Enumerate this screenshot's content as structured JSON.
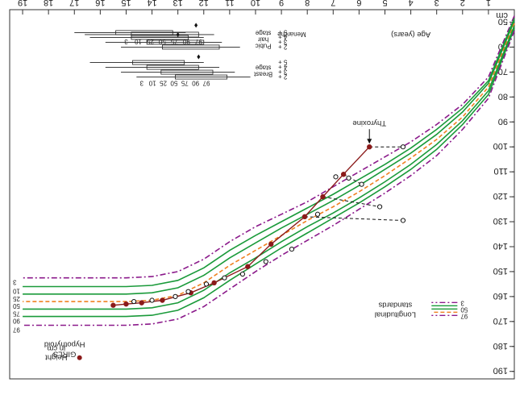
{
  "chart_data": {
    "type": "line",
    "orientation": "rotated-180",
    "title_lines": [
      "GIRLS",
      "Hypothyroid"
    ],
    "unit_label": "cm",
    "legend_marker_label_lines": [
      "Height",
      "in cm"
    ],
    "legend_standards_label_lines": [
      "Longitudinal",
      "standards"
    ],
    "legend_percentile_labels": [
      "97",
      "50",
      "3"
    ],
    "xlabel": "Age (years)",
    "x_ticks": [
      1,
      2,
      3,
      4,
      5,
      6,
      7,
      8,
      9,
      10,
      11,
      12,
      13,
      14,
      15,
      16,
      17,
      18,
      19
    ],
    "y_ticks": [
      50,
      60,
      70,
      80,
      90,
      100,
      110,
      120,
      130,
      140,
      150,
      160,
      170,
      180,
      190
    ],
    "xlim": [
      0,
      19.5
    ],
    "ylim": [
      45,
      193
    ],
    "colors": {
      "p97": "#8b1a8b",
      "p90": "#1a9a3a",
      "p75": "#1a9a3a",
      "p50": "#f08020",
      "p25": "#1a9a3a",
      "p10": "#1a9a3a",
      "p3": "#8b1a8b",
      "patient": "#8b1a1a",
      "marker": "#8b1a1a",
      "text": "#222222"
    },
    "percentile_labels": [
      "3",
      "10",
      "25",
      "50",
      "75",
      "90",
      "97"
    ],
    "series": [
      {
        "name": "3",
        "key": "p3",
        "x": [
          0,
          1,
          2,
          3,
          4,
          5,
          6,
          7,
          8,
          9,
          10,
          11,
          12,
          13,
          14,
          15,
          16,
          17,
          18,
          19
        ],
        "y": [
          47.5,
          72,
          83,
          91,
          98,
          104,
          110,
          116,
          122,
          127,
          132,
          138,
          145,
          150,
          152,
          152.5,
          152.5,
          152.5,
          152.5,
          152.5
        ]
      },
      {
        "name": "10",
        "key": "p10",
        "x": [
          0,
          1,
          2,
          3,
          4,
          5,
          6,
          7,
          8,
          9,
          10,
          11,
          12,
          13,
          14,
          15,
          16,
          17,
          18,
          19
        ],
        "y": [
          48.5,
          73.5,
          84.5,
          93,
          100.5,
          107,
          113,
          119,
          124.5,
          130,
          135.5,
          141.5,
          148.5,
          153.5,
          155.5,
          156,
          156,
          156,
          156,
          156
        ]
      },
      {
        "name": "25",
        "key": "p25",
        "x": [
          0,
          1,
          2,
          3,
          4,
          5,
          6,
          7,
          8,
          9,
          10,
          11,
          12,
          13,
          14,
          15,
          16,
          17,
          18,
          19
        ],
        "y": [
          49.5,
          74.5,
          86,
          95,
          102.5,
          109,
          115.5,
          121.5,
          127,
          132.5,
          138.5,
          144.5,
          151.5,
          156.5,
          158.5,
          159,
          159,
          159,
          159,
          159
        ]
      },
      {
        "name": "50",
        "key": "p50",
        "x": [
          0,
          1,
          2,
          3,
          4,
          5,
          6,
          7,
          8,
          9,
          10,
          11,
          12,
          13,
          14,
          15,
          16,
          17,
          18,
          19
        ],
        "y": [
          50.5,
          76,
          88,
          97,
          104.5,
          111.5,
          118,
          124,
          129.5,
          135.5,
          141.5,
          147.5,
          154.5,
          159.5,
          161.5,
          162,
          162,
          162,
          162,
          162
        ]
      },
      {
        "name": "75",
        "key": "p75",
        "x": [
          0,
          1,
          2,
          3,
          4,
          5,
          6,
          7,
          8,
          9,
          10,
          11,
          12,
          13,
          14,
          15,
          16,
          17,
          18,
          19
        ],
        "y": [
          51.5,
          77.5,
          89.5,
          99,
          107,
          114,
          120.5,
          126.5,
          132,
          138,
          144.5,
          150.5,
          157.5,
          162.5,
          164.5,
          165,
          165,
          165,
          165,
          165
        ]
      },
      {
        "name": "90",
        "key": "p90",
        "x": [
          0,
          1,
          2,
          3,
          4,
          5,
          6,
          7,
          8,
          9,
          10,
          11,
          12,
          13,
          14,
          15,
          16,
          17,
          18,
          19
        ],
        "y": [
          52.5,
          79,
          91,
          101,
          109,
          116,
          122.5,
          128.5,
          134.5,
          140.5,
          147,
          153.5,
          160.5,
          165.5,
          167.5,
          168,
          168,
          168,
          168,
          168
        ]
      },
      {
        "name": "97",
        "key": "p97",
        "x": [
          0,
          1,
          2,
          3,
          4,
          5,
          6,
          7,
          8,
          9,
          10,
          11,
          12,
          13,
          14,
          15,
          16,
          17,
          18,
          19
        ],
        "y": [
          53.5,
          80.5,
          93,
          103.5,
          111.5,
          118.5,
          125,
          131.5,
          137.5,
          143.5,
          150,
          157,
          164,
          169,
          171,
          171.5,
          171.5,
          171.5,
          171.5,
          171.5
        ]
      }
    ],
    "patient_series": {
      "filled_points": {
        "x": [
          5.6,
          6.6,
          7.4,
          8.1,
          9.4,
          10.3,
          11.6,
          12.5,
          13.6,
          14.4,
          15.0,
          15.5
        ],
        "y": [
          100,
          111,
          120,
          128,
          139,
          148,
          154.5,
          158.5,
          161.5,
          162.5,
          163,
          163.5
        ]
      },
      "bone_age_points": {
        "x": [
          4.3,
          4.3,
          5.2,
          5.9,
          6.4,
          6.9,
          7.6,
          8.6,
          9.6,
          10.5,
          11.2,
          11.9,
          12.6,
          13.1,
          14.0,
          14.7
        ],
        "y": [
          100,
          129.5,
          124,
          115,
          112.5,
          112,
          127,
          141,
          146,
          151,
          152.5,
          155,
          158,
          160,
          161.5,
          162
        ]
      },
      "connectors": [
        {
          "x1": 5.6,
          "y1": 100,
          "x2": 4.3,
          "y2": 100
        },
        {
          "x1": 6.6,
          "y1": 111,
          "x2": 5.9,
          "y2": 115
        },
        {
          "x1": 7.4,
          "y1": 120,
          "x2": 5.2,
          "y2": 124
        },
        {
          "x1": 8.1,
          "y1": 128,
          "x2": 4.3,
          "y2": 129.5
        }
      ]
    },
    "annotation": {
      "text": "Thyroxine",
      "x": 5.6,
      "y": 100
    },
    "maturity_block": {
      "menarche_label": "Menarche",
      "pubic_label_lines": [
        "Pubic",
        "hair",
        "stage"
      ],
      "breast_label_lines": [
        "Breast",
        "stage"
      ],
      "stage_labels": [
        "2 +",
        "3 +",
        "4 +",
        "5 +"
      ],
      "percentile_header": [
        "97",
        "90",
        "75",
        "50",
        "25",
        "10",
        "3"
      ]
    }
  }
}
